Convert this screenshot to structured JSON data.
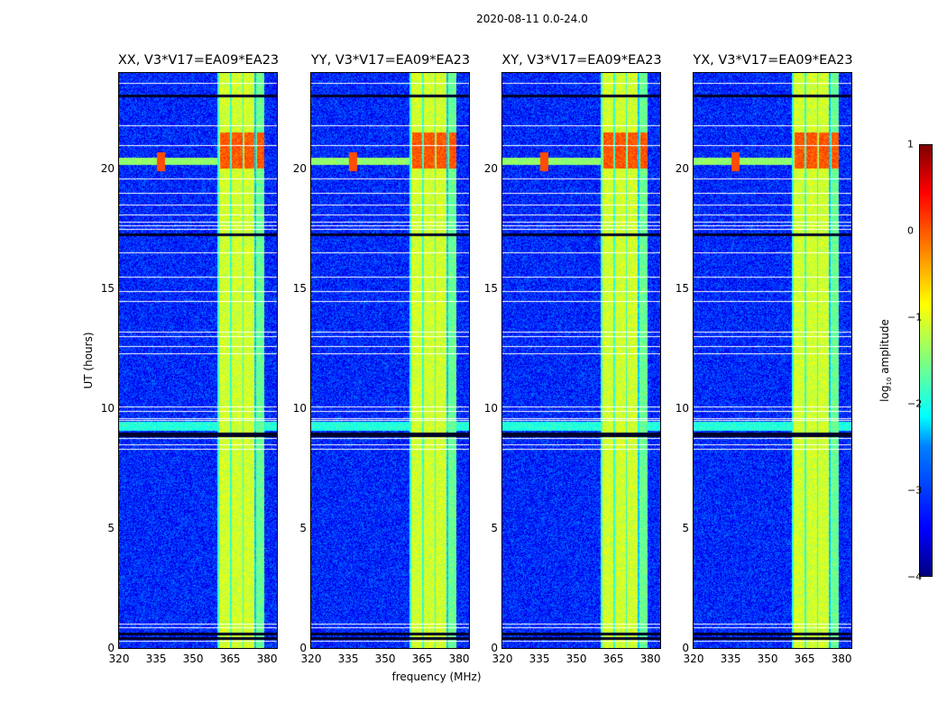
{
  "suptitle": "2020-08-11 0.0-24.0",
  "chart_data": {
    "type": "heatmap",
    "panels": [
      {
        "title": "XX, V3*V17=EA09*EA23"
      },
      {
        "title": "YY, V3*V17=EA09*EA23"
      },
      {
        "title": "XY, V3*V17=EA09*EA23"
      },
      {
        "title": "YX, V3*V17=EA09*EA23"
      }
    ],
    "xlabel": "frequency (MHz)",
    "ylabel": "UT (hours)",
    "xlim": [
      320,
      384
    ],
    "ylim": [
      0,
      24
    ],
    "xticks": [
      "320",
      "335",
      "350",
      "365",
      "380"
    ],
    "xtick_values": [
      320,
      335,
      350,
      365,
      380
    ],
    "yticks": [
      "0",
      "5",
      "10",
      "15",
      "20"
    ],
    "ytick_values": [
      0,
      5,
      10,
      15,
      20
    ],
    "colorbar": {
      "label_main": "log",
      "label_sub": "10",
      "label_rest": " amplitude",
      "range": [
        -4,
        1
      ],
      "ticks": [
        "1",
        "0",
        "−1",
        "−2",
        "−3",
        "−4"
      ],
      "tick_values": [
        1,
        0,
        -1,
        -2,
        -3,
        -4
      ],
      "colormap": "jet"
    },
    "features": {
      "background_log_amp": -3.2,
      "rfi_band_MHz": [
        360,
        379
      ],
      "rfi_band_log_amp": -1.1,
      "rfi_burst_hours": [
        20,
        21.5
      ],
      "rfi_burst_log_amp": 0,
      "broadband_event_hour": 20.3,
      "broadband_peak_MHz": 337,
      "flagged_hours": [
        0.3,
        0.85,
        1.0,
        8.3,
        8.5,
        8.75,
        9.5,
        9.6,
        9.9,
        10.1,
        12.3,
        12.6,
        13.0,
        13.2,
        14.5,
        14.9,
        15.5,
        16.5,
        17.5,
        17.65,
        17.8,
        18.1,
        18.5,
        19.0,
        19.6,
        21.0,
        21.8,
        23.6
      ],
      "dark_hours": [
        0.45,
        0.65,
        8.9,
        9.0,
        17.3,
        23.1
      ]
    }
  }
}
